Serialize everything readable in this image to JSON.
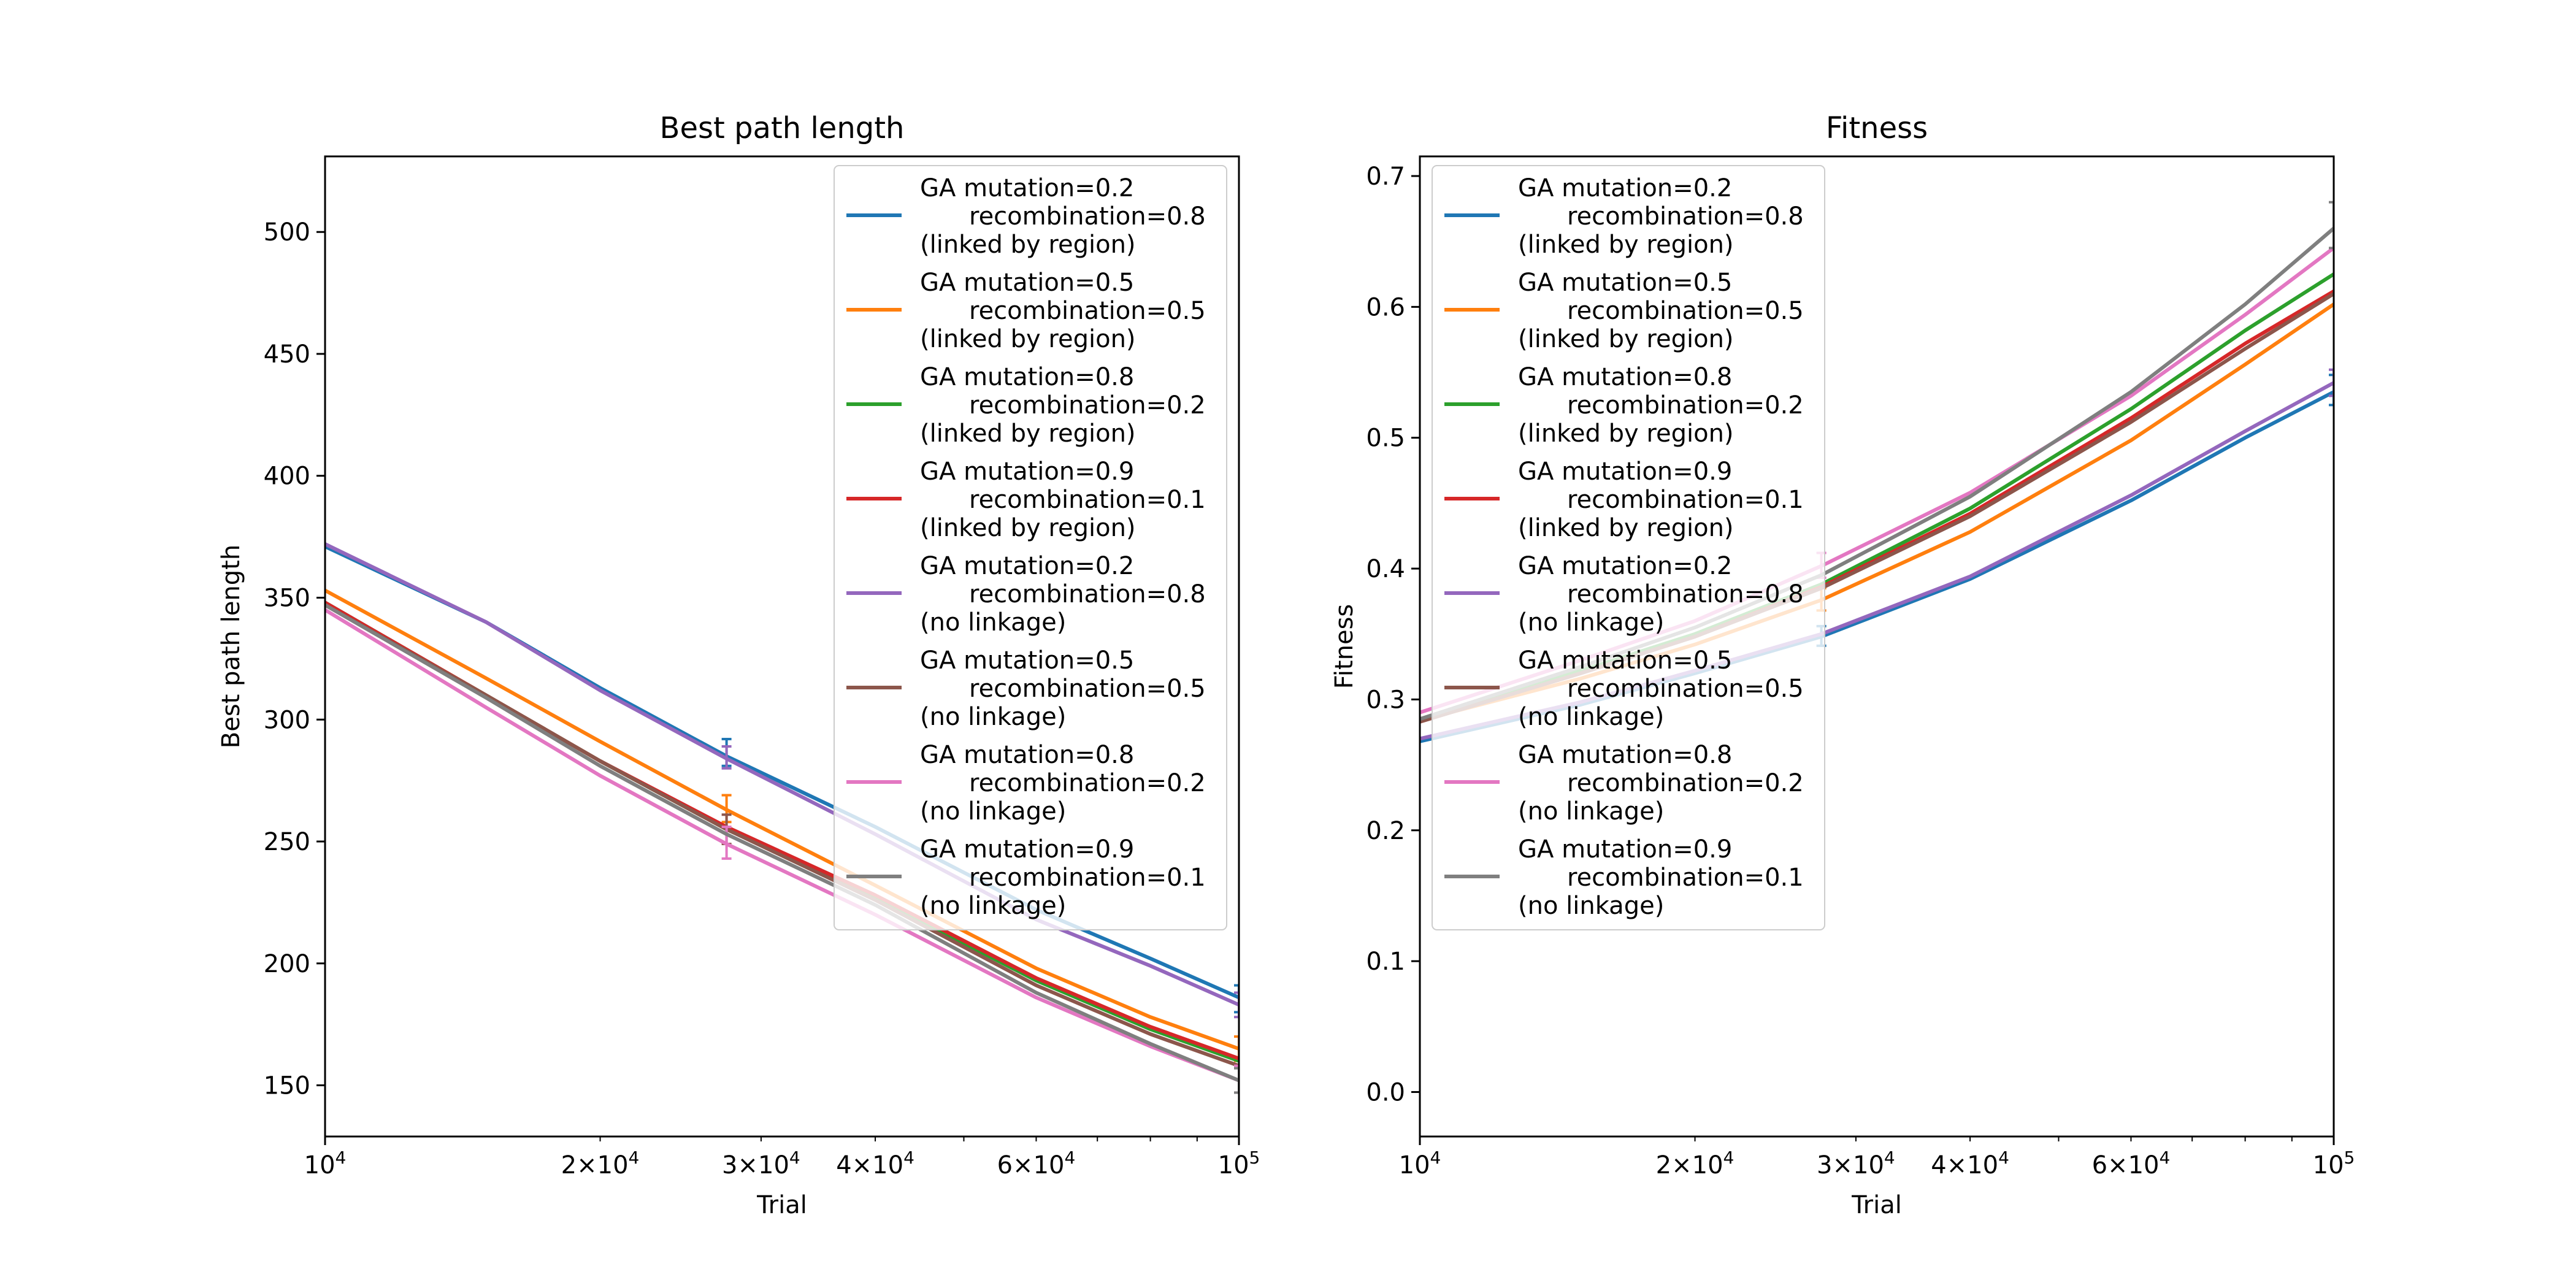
{
  "chart_data": [
    {
      "type": "line",
      "title": "Best path length",
      "xlabel": "Trial",
      "ylabel": "Best path length",
      "x_scale": "log",
      "xlim": [
        10000,
        100000
      ],
      "ylim": [
        129,
        531
      ],
      "x_major_ticks": [
        {
          "value": 10000,
          "base": "10",
          "exp": "4"
        },
        {
          "value": 100000,
          "base": "10",
          "exp": "5"
        }
      ],
      "x_minor_ticks": [
        {
          "value": 20000,
          "coef": "2",
          "base": "10",
          "exp": "4"
        },
        {
          "value": 30000,
          "coef": "3",
          "base": "10",
          "exp": "4"
        },
        {
          "value": 40000,
          "coef": "4",
          "base": "10",
          "exp": "4"
        },
        {
          "value": 60000,
          "coef": "6",
          "base": "10",
          "exp": "4"
        }
      ],
      "y_ticks": [
        {
          "value": 150,
          "label": "150"
        },
        {
          "value": 200,
          "label": "200"
        },
        {
          "value": 250,
          "label": "250"
        },
        {
          "value": 300,
          "label": "300"
        },
        {
          "value": 350,
          "label": "350"
        },
        {
          "value": 400,
          "label": "400"
        },
        {
          "value": 450,
          "label": "450"
        },
        {
          "value": 500,
          "label": "500"
        }
      ],
      "legend_position": "upper-right",
      "series": [
        {
          "name": [
            "GA mutation=0.2",
            "recombination=0.8",
            "(linked by region)"
          ],
          "color": "#1f77b4",
          "x": [
            10000,
            15000,
            20000,
            27500,
            40000,
            60000,
            80000,
            100000
          ],
          "y": [
            371,
            340,
            313,
            285,
            256,
            222,
            202,
            186
          ],
          "errorbars": [
            {
              "x": 27500,
              "lo": 281,
              "hi": 292
            },
            {
              "x": 100000,
              "lo": 180,
              "hi": 191
            }
          ]
        },
        {
          "name": [
            "GA mutation=0.5",
            "recombination=0.5",
            "(linked by region)"
          ],
          "color": "#ff7f0e",
          "x": [
            10000,
            15000,
            20000,
            27500,
            40000,
            60000,
            80000,
            100000
          ],
          "y": [
            353,
            317,
            291,
            263,
            232,
            198,
            178,
            165
          ],
          "errorbars": [
            {
              "x": 27500,
              "lo": 258,
              "hi": 269
            },
            {
              "x": 100000,
              "lo": 160,
              "hi": 170
            }
          ]
        },
        {
          "name": [
            "GA mutation=0.8",
            "recombination=0.2",
            "(linked by region)"
          ],
          "color": "#2ca02c",
          "x": [
            10000,
            15000,
            20000,
            27500,
            40000,
            60000,
            80000,
            100000
          ],
          "y": [
            348,
            310,
            283,
            255,
            227,
            193,
            173,
            160
          ],
          "errorbars": []
        },
        {
          "name": [
            "GA mutation=0.9",
            "recombination=0.1",
            "(linked by region)"
          ],
          "color": "#d62728",
          "x": [
            10000,
            15000,
            20000,
            27500,
            40000,
            60000,
            80000,
            100000
          ],
          "y": [
            348,
            310,
            283,
            256,
            228,
            194,
            174,
            161
          ],
          "errorbars": []
        },
        {
          "name": [
            "GA mutation=0.2",
            "recombination=0.8",
            "(no linkage)"
          ],
          "color": "#9467bd",
          "x": [
            10000,
            15000,
            20000,
            27500,
            40000,
            60000,
            80000,
            100000
          ],
          "y": [
            372,
            340,
            312,
            284,
            253,
            218,
            199,
            183
          ],
          "errorbars": [
            {
              "x": 27500,
              "lo": 280,
              "hi": 289
            },
            {
              "x": 100000,
              "lo": 178,
              "hi": 188
            }
          ]
        },
        {
          "name": [
            "GA mutation=0.5",
            "recombination=0.5",
            "(no linkage)"
          ],
          "color": "#8c564b",
          "x": [
            10000,
            15000,
            20000,
            27500,
            40000,
            60000,
            80000,
            100000
          ],
          "y": [
            347,
            310,
            283,
            255,
            226,
            191,
            171,
            158
          ],
          "errorbars": [
            {
              "x": 27500,
              "lo": 249,
              "hi": 261
            }
          ]
        },
        {
          "name": [
            "GA mutation=0.8",
            "recombination=0.2",
            "(no linkage)"
          ],
          "color": "#e377c2",
          "x": [
            10000,
            15000,
            20000,
            27500,
            40000,
            60000,
            80000,
            100000
          ],
          "y": [
            345,
            305,
            277,
            249,
            220,
            186,
            166,
            152
          ],
          "errorbars": [
            {
              "x": 27500,
              "lo": 243,
              "hi": 256
            },
            {
              "x": 100000,
              "lo": 147,
              "hi": 158
            }
          ]
        },
        {
          "name": [
            "GA mutation=0.9",
            "recombination=0.1",
            "(no linkage)"
          ],
          "color": "#7f7f7f",
          "x": [
            10000,
            15000,
            20000,
            27500,
            40000,
            60000,
            80000,
            100000
          ],
          "y": [
            347,
            309,
            281,
            253,
            224,
            188,
            167,
            152
          ],
          "errorbars": [
            {
              "x": 100000,
              "lo": 147,
              "hi": 157
            }
          ]
        }
      ]
    },
    {
      "type": "line",
      "title": "Fitness",
      "xlabel": "Trial",
      "ylabel": "Fitness",
      "x_scale": "log",
      "xlim": [
        10000,
        100000
      ],
      "ylim": [
        -0.034,
        0.715
      ],
      "x_major_ticks": [
        {
          "value": 10000,
          "base": "10",
          "exp": "4"
        },
        {
          "value": 100000,
          "base": "10",
          "exp": "5"
        }
      ],
      "x_minor_ticks": [
        {
          "value": 20000,
          "coef": "2",
          "base": "10",
          "exp": "4"
        },
        {
          "value": 30000,
          "coef": "3",
          "base": "10",
          "exp": "4"
        },
        {
          "value": 40000,
          "coef": "4",
          "base": "10",
          "exp": "4"
        },
        {
          "value": 60000,
          "coef": "6",
          "base": "10",
          "exp": "4"
        }
      ],
      "y_ticks": [
        {
          "value": 0.0,
          "label": "0.0"
        },
        {
          "value": 0.1,
          "label": "0.1"
        },
        {
          "value": 0.2,
          "label": "0.2"
        },
        {
          "value": 0.3,
          "label": "0.3"
        },
        {
          "value": 0.4,
          "label": "0.4"
        },
        {
          "value": 0.5,
          "label": "0.5"
        },
        {
          "value": 0.6,
          "label": "0.6"
        },
        {
          "value": 0.7,
          "label": "0.7"
        }
      ],
      "legend_position": "upper-left",
      "series": [
        {
          "name": [
            "GA mutation=0.2",
            "recombination=0.8",
            "(linked by region)"
          ],
          "color": "#1f77b4",
          "x": [
            10000,
            15000,
            20000,
            27500,
            40000,
            60000,
            80000,
            100000
          ],
          "y": [
            0.268,
            0.296,
            0.32,
            0.348,
            0.392,
            0.452,
            0.5,
            0.535
          ],
          "errorbars": [
            {
              "x": 27500,
              "lo": 0.341,
              "hi": 0.356
            },
            {
              "x": 100000,
              "lo": 0.525,
              "hi": 0.548
            }
          ]
        },
        {
          "name": [
            "GA mutation=0.5",
            "recombination=0.5",
            "(linked by region)"
          ],
          "color": "#ff7f0e",
          "x": [
            10000,
            15000,
            20000,
            27500,
            40000,
            60000,
            80000,
            100000
          ],
          "y": [
            0.284,
            0.316,
            0.342,
            0.376,
            0.428,
            0.498,
            0.556,
            0.602
          ],
          "errorbars": [
            {
              "x": 27500,
              "lo": 0.368,
              "hi": 0.385
            }
          ]
        },
        {
          "name": [
            "GA mutation=0.8",
            "recombination=0.2",
            "(linked by region)"
          ],
          "color": "#2ca02c",
          "x": [
            10000,
            15000,
            20000,
            27500,
            40000,
            60000,
            80000,
            100000
          ],
          "y": [
            0.285,
            0.322,
            0.35,
            0.388,
            0.446,
            0.522,
            0.582,
            0.625
          ],
          "errorbars": []
        },
        {
          "name": [
            "GA mutation=0.9",
            "recombination=0.1",
            "(linked by region)"
          ],
          "color": "#d62728",
          "x": [
            10000,
            15000,
            20000,
            27500,
            40000,
            60000,
            80000,
            100000
          ],
          "y": [
            0.283,
            0.32,
            0.348,
            0.386,
            0.442,
            0.515,
            0.572,
            0.612
          ],
          "errorbars": []
        },
        {
          "name": [
            "GA mutation=0.2",
            "recombination=0.8",
            "(no linkage)"
          ],
          "color": "#9467bd",
          "x": [
            10000,
            15000,
            20000,
            27500,
            40000,
            60000,
            80000,
            100000
          ],
          "y": [
            0.27,
            0.298,
            0.322,
            0.35,
            0.394,
            0.456,
            0.505,
            0.542
          ],
          "errorbars": [
            {
              "x": 100000,
              "lo": 0.532,
              "hi": 0.552
            }
          ]
        },
        {
          "name": [
            "GA mutation=0.5",
            "recombination=0.5",
            "(no linkage)"
          ],
          "color": "#8c564b",
          "x": [
            10000,
            15000,
            20000,
            27500,
            40000,
            60000,
            80000,
            100000
          ],
          "y": [
            0.283,
            0.32,
            0.348,
            0.385,
            0.44,
            0.512,
            0.568,
            0.61
          ],
          "errorbars": []
        },
        {
          "name": [
            "GA mutation=0.8",
            "recombination=0.2",
            "(no linkage)"
          ],
          "color": "#e377c2",
          "x": [
            10000,
            15000,
            20000,
            27500,
            40000,
            60000,
            80000,
            100000
          ],
          "y": [
            0.29,
            0.33,
            0.36,
            0.402,
            0.458,
            0.532,
            0.594,
            0.645
          ],
          "errorbars": [
            {
              "x": 27500,
              "lo": 0.393,
              "hi": 0.412
            }
          ]
        },
        {
          "name": [
            "GA mutation=0.9",
            "recombination=0.1",
            "(no linkage)"
          ],
          "color": "#7f7f7f",
          "x": [
            10000,
            15000,
            20000,
            27500,
            40000,
            60000,
            80000,
            100000
          ],
          "y": [
            0.285,
            0.325,
            0.355,
            0.395,
            0.455,
            0.535,
            0.602,
            0.66
          ],
          "errorbars": [
            {
              "x": 100000,
              "lo": 0.645,
              "hi": 0.68
            }
          ]
        }
      ]
    }
  ]
}
